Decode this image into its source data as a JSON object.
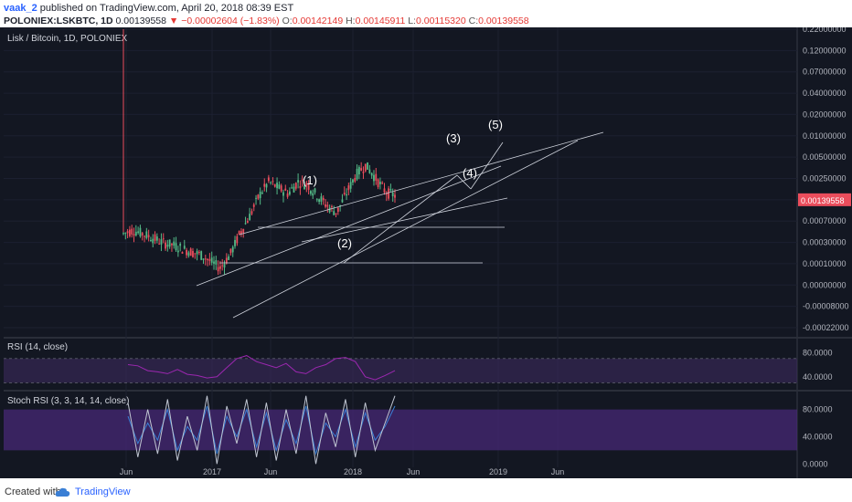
{
  "header": {
    "user": "vaak_2",
    "published_text": "published on TradingView.com, April 20, 2018 08:39 EST",
    "symbol": "POLONIEX:LSKBTC, 1D",
    "last_price": "0.00139558",
    "change": "−0.00002604 (−1.83%)",
    "open_label": "O:",
    "open": "0.00142149",
    "high_label": "H:",
    "high": "0.00145911",
    "low_label": "L:",
    "low": "0.00115320",
    "close_label": "C:",
    "close": "0.00139558"
  },
  "footer": {
    "created_with": "Created with",
    "brand": "TradingView"
  },
  "colors": {
    "background": "#131722",
    "candle_up": "#53b987",
    "candle_down": "#eb4d5c",
    "rsi_line": "#9c27b0",
    "rsi_band": "#3c2a5e",
    "stoch_k": "#c0c6d2",
    "stoch_d": "#3a7fd5",
    "stoch_band": "#4a2a7a",
    "price_badge": "#eb4d5c"
  },
  "chart_data": [
    {
      "type": "candlestick",
      "title": "Lisk / Bitcoin, 1D, POLONIEX",
      "x_axis": {
        "tick_labels": [
          "Jun",
          "2017",
          "Jun",
          "2018",
          "Jun",
          "2019",
          "Jun"
        ]
      },
      "y_axis": {
        "scale": "log",
        "tick_labels": [
          "0.22000000",
          "0.12000000",
          "0.07000000",
          "0.04000000",
          "0.02000000",
          "0.01000000",
          "0.00500000",
          "0.00250000",
          "0.00139558",
          "0.00070000",
          "0.00030000",
          "0.00010000",
          "0.00000000",
          "-0.00008000",
          "-0.00022000"
        ]
      },
      "last_price_badge": "0.00139558",
      "wave_labels": [
        "(1)",
        "(2)",
        "(3)",
        "(4)",
        "(5)"
      ],
      "series": [
        {
          "values": [
            0.0004,
            0.00045,
            0.0004,
            0.00035,
            0.0003,
            0.00028,
            0.00025,
            0.00022,
            0.0002,
            0.00016,
            0.00013,
            0.0002,
            0.0004,
            0.0007,
            0.0014,
            0.0022,
            0.0018,
            0.0015,
            0.0022,
            0.002,
            0.0014,
            0.001,
            0.0008,
            0.0015,
            0.0028,
            0.0038,
            0.0025,
            0.0016,
            0.0014
          ]
        }
      ]
    },
    {
      "type": "line",
      "title": "RSI (14, close)",
      "y_axis": {
        "tick_labels": [
          "80.0000",
          "40.0000"
        ],
        "range": [
          20,
          100
        ]
      },
      "series": [
        {
          "values": [
            60,
            58,
            50,
            48,
            45,
            52,
            44,
            42,
            38,
            40,
            55,
            70,
            75,
            65,
            60,
            55,
            62,
            48,
            45,
            55,
            60,
            70,
            72,
            65,
            40,
            35,
            42,
            50
          ]
        }
      ]
    },
    {
      "type": "line",
      "title": "Stoch RSI (3, 3, 14, 14, close)",
      "y_axis": {
        "tick_labels": [
          "80.0000",
          "40.0000",
          "0.0000"
        ],
        "range": [
          -5,
          105
        ]
      },
      "series": [
        {
          "values": [
            90,
            10,
            80,
            15,
            95,
            5,
            70,
            20,
            100,
            0,
            85,
            30,
            95,
            10,
            90,
            5,
            80,
            15,
            100,
            0,
            75,
            25,
            95,
            10,
            90,
            20,
            60,
            100
          ]
        },
        {
          "values": [
            70,
            30,
            60,
            35,
            80,
            20,
            55,
            35,
            85,
            15,
            70,
            40,
            80,
            25,
            75,
            20,
            65,
            30,
            85,
            15,
            60,
            40,
            80,
            25,
            75,
            35,
            55,
            85
          ]
        }
      ]
    }
  ]
}
